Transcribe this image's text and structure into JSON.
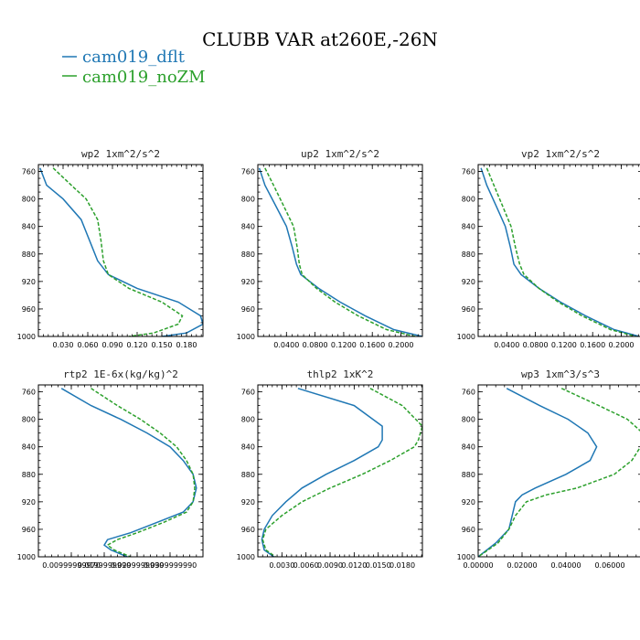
{
  "title": "CLUBB VAR at260E,-26N",
  "legend": [
    {
      "label": "cam019_dflt",
      "color": "#1f77b4",
      "dash": "none"
    },
    {
      "label": "cam019_noZM",
      "color": "#2ca02c",
      "dash": "4,2"
    }
  ],
  "chart_data": [
    {
      "type": "line",
      "title": "wp2   1xm^2/s^2",
      "xlim": [
        0.0,
        0.2
      ],
      "ylim": [
        1000,
        750
      ],
      "xticklabels": [
        "0.030",
        "0.060",
        "0.090",
        "0.120",
        "0.150",
        "0.180"
      ],
      "xticks": [
        0.03,
        0.06,
        0.09,
        0.12,
        0.15,
        0.18
      ],
      "yticks": [
        760,
        800,
        840,
        880,
        920,
        960,
        1000
      ],
      "y": [
        755,
        780,
        800,
        830,
        860,
        890,
        910,
        930,
        950,
        970,
        982,
        995,
        1000
      ],
      "series": [
        {
          "name": "cam019_dflt",
          "values": [
            0.002,
            0.01,
            0.03,
            0.052,
            0.062,
            0.072,
            0.085,
            0.12,
            0.17,
            0.197,
            0.2,
            0.18,
            0.15
          ]
        },
        {
          "name": "cam019_noZM",
          "values": [
            0.018,
            0.04,
            0.058,
            0.072,
            0.076,
            0.079,
            0.085,
            0.11,
            0.15,
            0.175,
            0.17,
            0.14,
            0.11
          ]
        }
      ]
    },
    {
      "type": "line",
      "title": "up2   1xm^2/s^2",
      "xlim": [
        0.0,
        0.23
      ],
      "ylim": [
        1000,
        750
      ],
      "xticklabels": [
        "0.0400",
        "0.0800",
        "0.1200",
        "0.1600",
        "0.2000"
      ],
      "xticks": [
        0.04,
        0.08,
        0.12,
        0.16,
        0.2
      ],
      "yticks": [
        760,
        800,
        840,
        880,
        920,
        960,
        1000
      ],
      "y": [
        755,
        780,
        810,
        840,
        870,
        895,
        910,
        930,
        950,
        970,
        990,
        1000
      ],
      "series": [
        {
          "name": "cam019_dflt",
          "values": [
            0.002,
            0.01,
            0.025,
            0.04,
            0.048,
            0.054,
            0.06,
            0.085,
            0.115,
            0.15,
            0.19,
            0.23
          ]
        },
        {
          "name": "cam019_noZM",
          "values": [
            0.01,
            0.022,
            0.036,
            0.05,
            0.055,
            0.058,
            0.062,
            0.082,
            0.108,
            0.14,
            0.18,
            0.22
          ]
        }
      ]
    },
    {
      "type": "line",
      "title": "vp2   1xm^2/s^2",
      "xlim": [
        0.0,
        0.23
      ],
      "ylim": [
        1000,
        750
      ],
      "xticklabels": [
        "0.0400",
        "0.0800",
        "0.1200",
        "0.1600",
        "0.2000"
      ],
      "xticks": [
        0.04,
        0.08,
        0.12,
        0.16,
        0.2
      ],
      "yticks": [
        760,
        800,
        840,
        880,
        920,
        960,
        1000
      ],
      "y": [
        755,
        780,
        810,
        840,
        870,
        895,
        910,
        930,
        950,
        970,
        990,
        1000
      ],
      "series": [
        {
          "name": "cam019_dflt",
          "values": [
            0.004,
            0.012,
            0.025,
            0.038,
            0.045,
            0.05,
            0.06,
            0.085,
            0.115,
            0.15,
            0.19,
            0.225
          ]
        },
        {
          "name": "cam019_noZM",
          "values": [
            0.012,
            0.022,
            0.034,
            0.046,
            0.052,
            0.058,
            0.064,
            0.085,
            0.112,
            0.145,
            0.185,
            0.22
          ]
        }
      ]
    },
    {
      "type": "line",
      "title": "rtp2   1E-6x(kg/kg)^2",
      "xlim": [
        0.0,
        0.05
      ],
      "ylim": [
        1000,
        750
      ],
      "xticklabels": [
        "0.00999999970",
        "0.0199999990",
        "0.0299999990",
        "0.0399999990"
      ],
      "xticks": [
        0.01,
        0.02,
        0.03,
        0.04
      ],
      "yticks": [
        760,
        800,
        840,
        880,
        920,
        960,
        1000
      ],
      "y": [
        755,
        780,
        800,
        820,
        840,
        860,
        880,
        900,
        920,
        935,
        950,
        965,
        975,
        983,
        990,
        1000
      ],
      "series": [
        {
          "name": "cam019_dflt",
          "values": [
            0.007,
            0.016,
            0.025,
            0.033,
            0.04,
            0.044,
            0.047,
            0.048,
            0.047,
            0.044,
            0.036,
            0.028,
            0.021,
            0.02,
            0.022,
            0.027
          ]
        },
        {
          "name": "cam019_noZM",
          "values": [
            0.016,
            0.024,
            0.031,
            0.037,
            0.042,
            0.045,
            0.047,
            0.0475,
            0.047,
            0.045,
            0.038,
            0.03,
            0.024,
            0.021,
            0.023,
            0.028
          ]
        }
      ]
    },
    {
      "type": "line",
      "title": "thlp2   1xK^2",
      "xlim": [
        0.0,
        0.0205
      ],
      "ylim": [
        1000,
        750
      ],
      "xticklabels": [
        "0.0030",
        "0.0060",
        "0.0090",
        "0.0120",
        "0.0150",
        "0.0180"
      ],
      "xticks": [
        0.003,
        0.006,
        0.009,
        0.012,
        0.015,
        0.018
      ],
      "yticks": [
        760,
        800,
        840,
        880,
        920,
        960,
        1000
      ],
      "y": [
        755,
        780,
        810,
        830,
        840,
        860,
        880,
        900,
        920,
        940,
        960,
        975,
        990,
        1000
      ],
      "series": [
        {
          "name": "cam019_dflt",
          "values": [
            0.005,
            0.012,
            0.0155,
            0.0155,
            0.015,
            0.012,
            0.0085,
            0.0055,
            0.0035,
            0.0018,
            0.0008,
            0.0005,
            0.0008,
            0.002
          ]
        },
        {
          "name": "cam019_noZM",
          "values": [
            0.014,
            0.018,
            0.0205,
            0.02,
            0.0195,
            0.0165,
            0.013,
            0.009,
            0.0055,
            0.003,
            0.001,
            0.0006,
            0.001,
            0.0022
          ]
        }
      ]
    },
    {
      "type": "line",
      "title": "wp3   1xm^3/s^3",
      "xlim": [
        0.0,
        0.075
      ],
      "ylim": [
        1000,
        750
      ],
      "xticklabels": [
        "0.00000",
        "0.02000",
        "0.04000",
        "0.06000"
      ],
      "xticks": [
        0.0,
        0.02,
        0.04,
        0.06
      ],
      "yticks": [
        760,
        800,
        840,
        880,
        920,
        960,
        1000
      ],
      "y": [
        755,
        780,
        800,
        820,
        840,
        860,
        880,
        900,
        910,
        920,
        940,
        960,
        980,
        1000
      ],
      "series": [
        {
          "name": "cam019_dflt",
          "values": [
            0.013,
            0.028,
            0.041,
            0.05,
            0.054,
            0.051,
            0.04,
            0.026,
            0.02,
            0.017,
            0.0155,
            0.014,
            0.008,
            0.0
          ]
        },
        {
          "name": "cam019_noZM",
          "values": [
            0.038,
            0.055,
            0.068,
            0.075,
            0.074,
            0.07,
            0.062,
            0.045,
            0.031,
            0.022,
            0.017,
            0.014,
            0.009,
            0.0
          ]
        }
      ]
    }
  ]
}
